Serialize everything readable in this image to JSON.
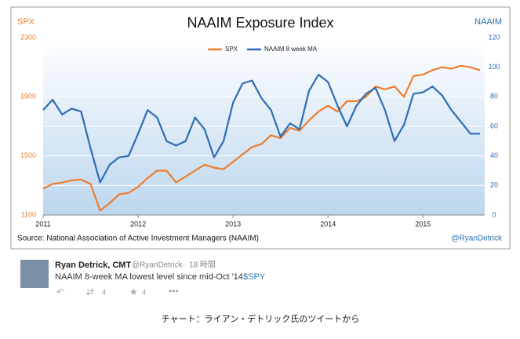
{
  "chart_data": {
    "type": "line",
    "title": "NAAIM Exposure Index",
    "y_label": "SPX",
    "y2_label": "NAAIM",
    "source": "Source:  National Association of Active Investment Managers (NAAIM)",
    "credit": "@RyanDetrick",
    "x": [
      2011.0,
      2011.1,
      2011.2,
      2011.3,
      2011.4,
      2011.5,
      2011.6,
      2011.7,
      2011.8,
      2011.9,
      2012.0,
      2012.1,
      2012.2,
      2012.3,
      2012.4,
      2012.5,
      2012.6,
      2012.7,
      2012.8,
      2012.9,
      2013.0,
      2013.1,
      2013.2,
      2013.3,
      2013.4,
      2013.5,
      2013.6,
      2013.7,
      2013.8,
      2013.9,
      2014.0,
      2014.1,
      2014.2,
      2014.3,
      2014.4,
      2014.5,
      2014.6,
      2014.7,
      2014.8,
      2014.9,
      2015.0,
      2015.1,
      2015.2,
      2015.3,
      2015.4,
      2015.5,
      2015.6
    ],
    "xlim": [
      2011,
      2015.65
    ],
    "xticks": [
      2011,
      2012,
      2013,
      2014,
      2015
    ],
    "ylim": [
      1100,
      2300
    ],
    "yticks": [
      1100,
      1500,
      1900,
      2300
    ],
    "y2lim": [
      0,
      120
    ],
    "y2ticks": [
      0,
      20,
      40,
      60,
      80,
      100,
      120
    ],
    "grid": true,
    "series": [
      {
        "name": "SPX",
        "color": "#ee7d2c",
        "values": [
          1280,
          1310,
          1320,
          1335,
          1340,
          1310,
          1130,
          1180,
          1240,
          1250,
          1290,
          1350,
          1400,
          1400,
          1320,
          1360,
          1400,
          1440,
          1420,
          1410,
          1460,
          1510,
          1560,
          1580,
          1640,
          1620,
          1690,
          1670,
          1740,
          1800,
          1840,
          1800,
          1870,
          1870,
          1900,
          1970,
          1950,
          1970,
          1900,
          2040,
          2050,
          2080,
          2100,
          2090,
          2110,
          2100,
          2080
        ]
      },
      {
        "name": "NAAIM 8 week MA",
        "color": "#2e6db4",
        "axis": "y2",
        "values": [
          71,
          78,
          68,
          72,
          70,
          45,
          22,
          34,
          39,
          40,
          55,
          71,
          66,
          50,
          47,
          50,
          66,
          58,
          39,
          50,
          76,
          89,
          91,
          79,
          71,
          53,
          62,
          58,
          84,
          95,
          90,
          74,
          60,
          74,
          82,
          86,
          71,
          50,
          61,
          82,
          83,
          87,
          81,
          71,
          63,
          55,
          55
        ]
      }
    ]
  },
  "tweet": {
    "name": "Ryan Detrick, CMT",
    "handle": "@RyanDetrick",
    "time": "18 時間",
    "text": "NAAIM 8-week MA lowest level since mid-Oct '14.",
    "link": "$SPY",
    "retweets": 4,
    "favorites": 4
  },
  "caption": "チャート：ライアン・デトリック氏のツイートから"
}
